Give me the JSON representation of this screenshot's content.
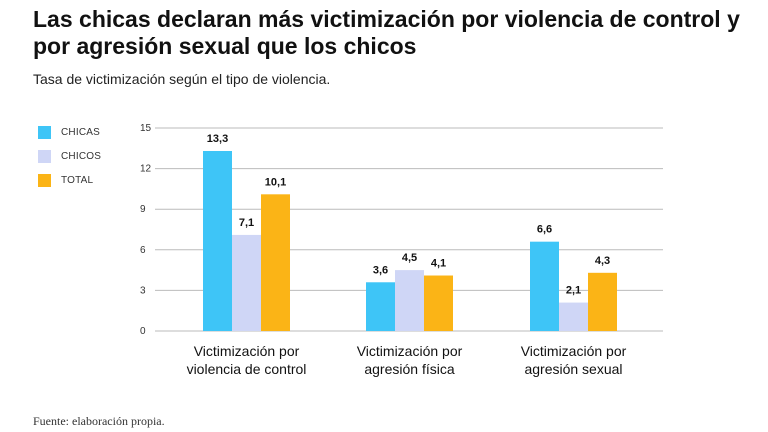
{
  "header": {
    "title": "Las chicas declaran más victimización por violencia de control y por agresión sexual que los chicos",
    "subtitle": "Tasa de victimización según el tipo de violencia."
  },
  "footer": {
    "source": "Fuente: elaboración propia."
  },
  "colors": {
    "chicas": "#3ec5f7",
    "chicos": "#cfd6f6",
    "total": "#fbb416",
    "grid": "#bbbbbb"
  },
  "chart_data": {
    "type": "bar",
    "categories": [
      [
        "Victimización por",
        "violencia de control"
      ],
      [
        "Victimización por",
        "agresión física"
      ],
      [
        "Victimización por",
        "agresión sexual"
      ]
    ],
    "series": [
      {
        "name": "CHICAS",
        "values": [
          13.3,
          3.6,
          6.6
        ],
        "labels": [
          "13,3",
          "3,6",
          "6,6"
        ],
        "color": "#3ec5f7"
      },
      {
        "name": "CHICOS",
        "values": [
          7.1,
          4.5,
          2.1
        ],
        "labels": [
          "7,1",
          "4,5",
          "2,1"
        ],
        "color": "#cfd6f6"
      },
      {
        "name": "TOTAL",
        "values": [
          10.1,
          4.1,
          4.3
        ],
        "labels": [
          "10,1",
          "4,1",
          "4,3"
        ],
        "color": "#fbb416"
      }
    ],
    "yticks": [
      0,
      3,
      6,
      9,
      12,
      15
    ],
    "ylim": [
      0,
      15
    ],
    "grid": true,
    "legend": "left"
  }
}
